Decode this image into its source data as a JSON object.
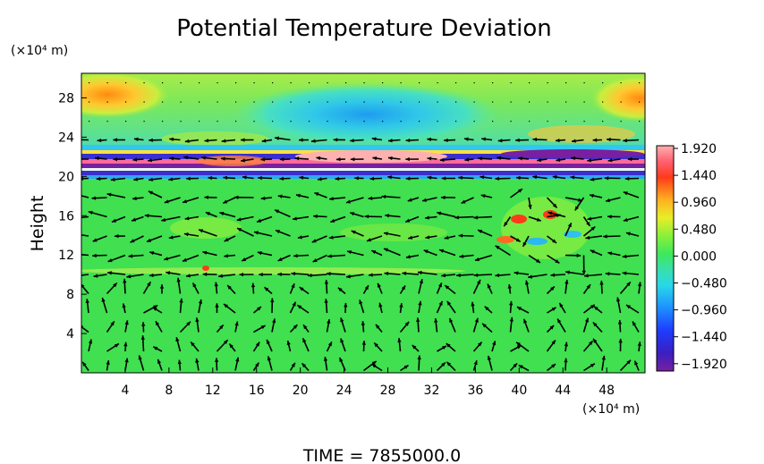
{
  "chart_data": {
    "type": "heatmap",
    "title": "Potential Temperature Deviation",
    "ylabel": "Height",
    "y_unit": "(×10⁴ m)",
    "x_unit": "(×10⁴ m)",
    "x_ticks": [
      "4",
      "8",
      "12",
      "16",
      "20",
      "24",
      "28",
      "32",
      "36",
      "40",
      "44",
      "48"
    ],
    "y_ticks": [
      "4",
      "8",
      "12",
      "16",
      "20",
      "24",
      "28"
    ],
    "xlim": [
      0,
      51.5
    ],
    "ylim": [
      0,
      30.5
    ],
    "colorbar": {
      "labels": [
        "1.920",
        "1.440",
        "0.960",
        "0.480",
        "0.000",
        "−0.480",
        "−0.960",
        "−1.440",
        "−1.920"
      ],
      "range": [
        -1.92,
        1.92
      ]
    },
    "overlay": "wind vectors",
    "footer": "TIME = 7855000.0"
  }
}
